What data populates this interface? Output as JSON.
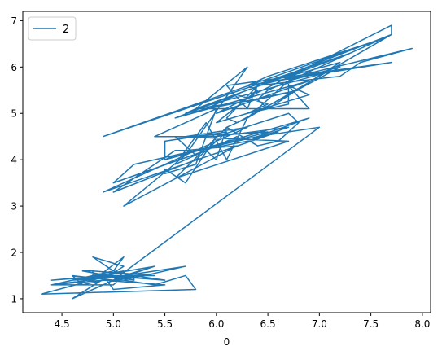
{
  "chart_data": {
    "type": "line",
    "xlabel": "0",
    "ylabel": "",
    "xlim": [
      4.12,
      8.08
    ],
    "ylim": [
      0.7,
      7.2
    ],
    "xticks": [
      4.5,
      5.0,
      5.5,
      6.0,
      6.5,
      7.0,
      7.5,
      8.0
    ],
    "xtick_labels": [
      "4.5",
      "5.0",
      "5.5",
      "6.0",
      "6.5",
      "7.0",
      "7.5",
      "8.0"
    ],
    "yticks": [
      1,
      2,
      3,
      4,
      5,
      6,
      7
    ],
    "ytick_labels": [
      "1",
      "2",
      "3",
      "4",
      "5",
      "6",
      "7"
    ],
    "grid": false,
    "legend_position": "top-left",
    "color": "#1f77b4",
    "series": [
      {
        "name": "2",
        "x": [
          5.1,
          4.9,
          4.7,
          4.6,
          5.0,
          5.4,
          4.6,
          5.0,
          4.4,
          4.9,
          5.4,
          4.8,
          4.8,
          4.3,
          5.8,
          5.7,
          5.4,
          5.1,
          5.7,
          5.1,
          5.4,
          5.1,
          4.6,
          5.1,
          4.8,
          5.0,
          5.0,
          5.2,
          5.2,
          4.7,
          4.8,
          5.4,
          5.2,
          5.5,
          4.9,
          5.0,
          5.5,
          4.9,
          4.4,
          5.1,
          5.0,
          4.5,
          4.4,
          5.0,
          5.1,
          4.8,
          5.1,
          4.6,
          5.3,
          5.0,
          7.0,
          6.4,
          6.9,
          5.5,
          6.5,
          5.7,
          6.3,
          4.9,
          6.6,
          5.2,
          5.0,
          5.9,
          6.0,
          6.1,
          5.6,
          6.7,
          5.6,
          5.8,
          6.2,
          5.6,
          5.9,
          6.1,
          6.3,
          6.1,
          6.4,
          6.6,
          6.8,
          6.7,
          6.0,
          5.7,
          5.5,
          5.5,
          5.8,
          6.0,
          5.4,
          6.0,
          6.7,
          6.3,
          5.6,
          5.5,
          5.5,
          6.1,
          5.8,
          5.0,
          5.6,
          5.7,
          5.7,
          6.2,
          5.1,
          5.7,
          6.3,
          5.8,
          7.1,
          6.3,
          6.5,
          7.6,
          4.9,
          7.3,
          6.7,
          7.2,
          6.5,
          6.4,
          6.8,
          5.7,
          5.8,
          6.4,
          6.5,
          7.7,
          7.7,
          6.0,
          6.9,
          5.6,
          7.7,
          6.3,
          6.7,
          7.2,
          6.2,
          6.1,
          6.4,
          7.2,
          7.4,
          7.9,
          6.4,
          6.3,
          6.1,
          7.7,
          6.3,
          6.4,
          6.0,
          6.9,
          6.7,
          6.9,
          5.8,
          6.8,
          6.7,
          6.7,
          6.3,
          6.5,
          6.2,
          5.9
        ],
        "y": [
          1.4,
          1.4,
          1.3,
          1.5,
          1.4,
          1.7,
          1.4,
          1.5,
          1.4,
          1.5,
          1.5,
          1.6,
          1.4,
          1.1,
          1.2,
          1.5,
          1.3,
          1.4,
          1.7,
          1.5,
          1.7,
          1.5,
          1.0,
          1.7,
          1.9,
          1.6,
          1.6,
          1.5,
          1.4,
          1.6,
          1.6,
          1.5,
          1.5,
          1.4,
          1.5,
          1.2,
          1.3,
          1.4,
          1.3,
          1.5,
          1.3,
          1.3,
          1.3,
          1.6,
          1.9,
          1.4,
          1.6,
          1.4,
          1.5,
          1.4,
          4.7,
          4.5,
          4.9,
          4.0,
          4.6,
          4.5,
          4.7,
          3.3,
          4.6,
          3.9,
          3.5,
          4.2,
          4.0,
          4.7,
          3.6,
          4.4,
          4.5,
          4.1,
          4.5,
          3.9,
          4.8,
          4.0,
          4.9,
          4.7,
          4.3,
          4.4,
          4.8,
          5.0,
          4.5,
          3.5,
          3.8,
          3.7,
          3.9,
          5.1,
          4.5,
          4.5,
          4.7,
          4.4,
          4.1,
          4.0,
          4.4,
          4.6,
          4.0,
          3.3,
          4.2,
          4.2,
          4.2,
          4.3,
          3.0,
          4.1,
          6.0,
          5.1,
          5.9,
          5.6,
          5.8,
          6.6,
          4.5,
          6.3,
          5.8,
          6.1,
          5.1,
          5.3,
          5.5,
          5.0,
          5.1,
          5.3,
          5.5,
          6.7,
          6.9,
          5.0,
          5.7,
          4.9,
          6.7,
          4.9,
          5.7,
          6.0,
          4.8,
          4.9,
          5.6,
          5.8,
          6.1,
          6.4,
          5.6,
          5.1,
          5.6,
          6.1,
          5.6,
          5.5,
          4.8,
          5.4,
          5.6,
          5.1,
          5.1,
          5.9,
          5.7,
          5.2,
          5.0,
          5.2,
          5.4,
          5.1
        ]
      }
    ]
  }
}
